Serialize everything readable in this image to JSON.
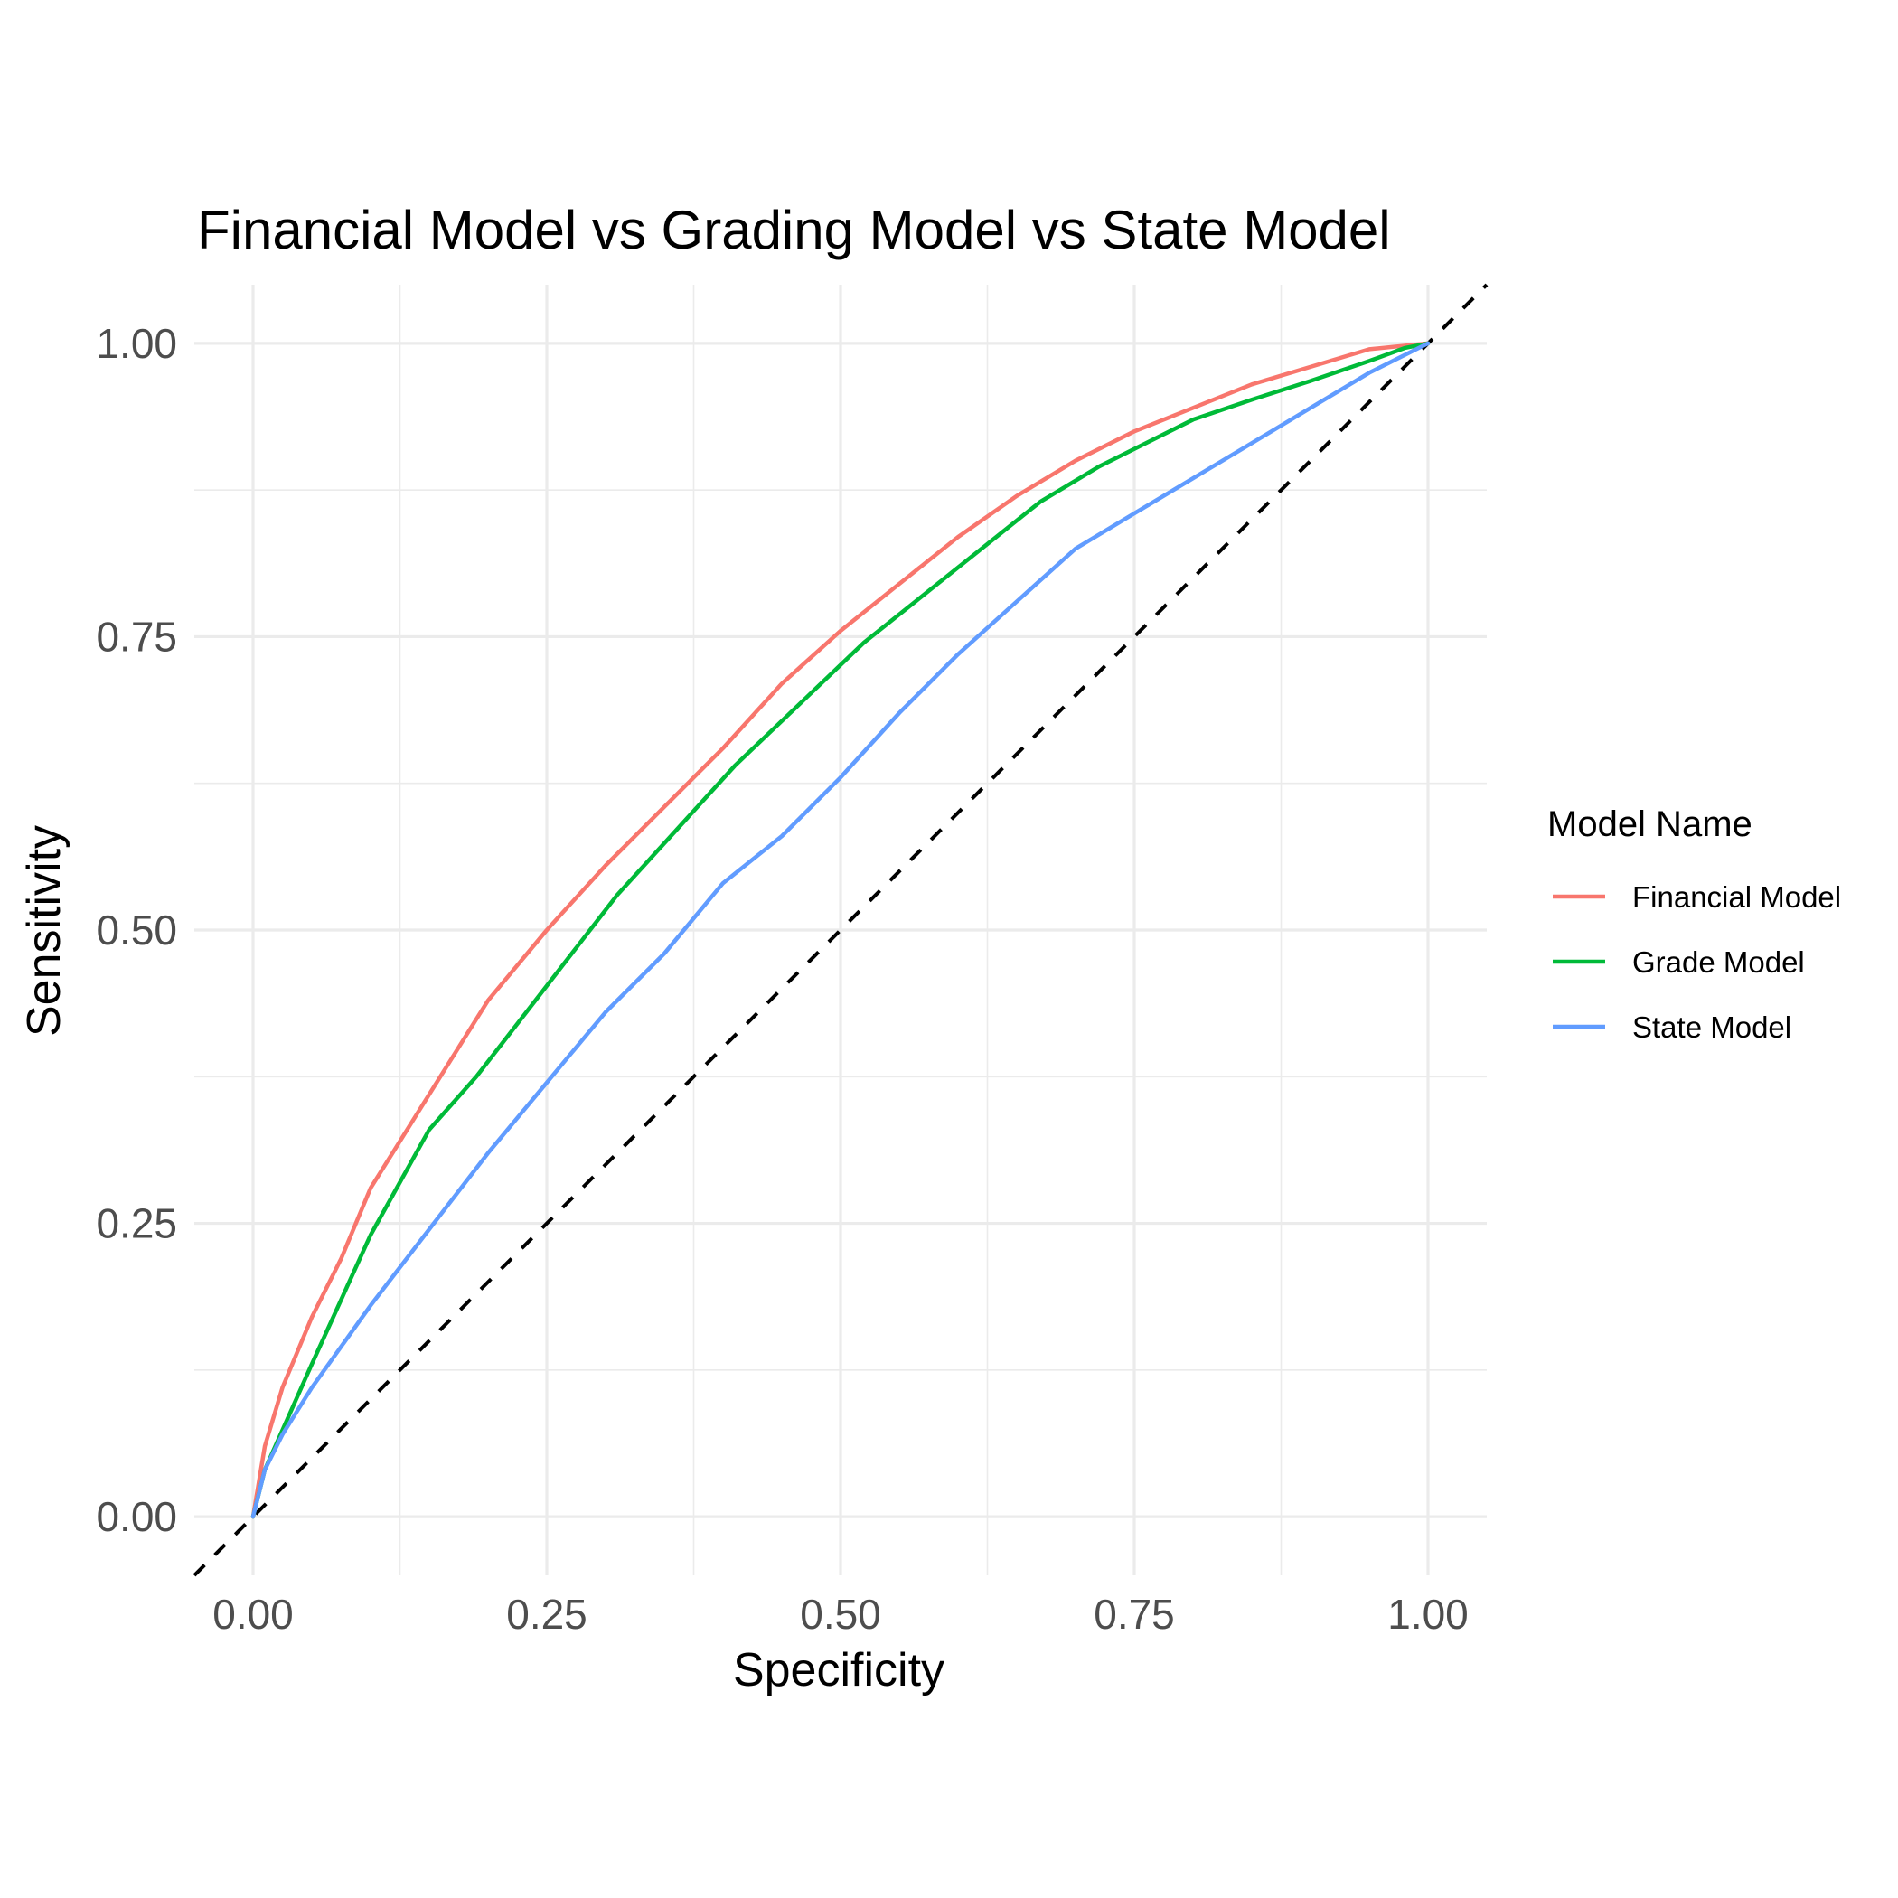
{
  "chart_data": {
    "type": "line",
    "title": "Financial Model vs Grading Model vs State Model",
    "xlabel": "Specificity",
    "ylabel": "Sensitivity",
    "xlim": [
      -0.05,
      1.05
    ],
    "ylim": [
      -0.05,
      1.05
    ],
    "x_ticks": [
      "0.00",
      "0.25",
      "0.50",
      "0.75",
      "1.00"
    ],
    "y_ticks": [
      "0.00",
      "0.25",
      "0.50",
      "0.75",
      "1.00"
    ],
    "grid": true,
    "legend": {
      "title": "Model Name",
      "placement": "right"
    },
    "reference_line": {
      "style": "dashed",
      "color": "#000000",
      "x": [
        -0.05,
        1.05
      ],
      "y": [
        -0.05,
        1.05
      ]
    },
    "series": [
      {
        "name": "Financial Model",
        "color": "#F8766D",
        "x": [
          0,
          0.01,
          0.025,
          0.05,
          0.075,
          0.1,
          0.125,
          0.15,
          0.175,
          0.2,
          0.225,
          0.25,
          0.3,
          0.35,
          0.4,
          0.45,
          0.5,
          0.55,
          0.6,
          0.65,
          0.7,
          0.75,
          0.8,
          0.85,
          0.9,
          0.95,
          1.0
        ],
        "y": [
          0,
          0.06,
          0.11,
          0.17,
          0.22,
          0.28,
          0.32,
          0.36,
          0.4,
          0.44,
          0.47,
          0.5,
          0.555,
          0.605,
          0.655,
          0.71,
          0.755,
          0.795,
          0.835,
          0.87,
          0.9,
          0.925,
          0.945,
          0.965,
          0.98,
          0.995,
          1.0
        ]
      },
      {
        "name": "Grade Model",
        "color": "#00BA38",
        "x": [
          0,
          0.01,
          0.05,
          0.1,
          0.15,
          0.19,
          0.31,
          0.41,
          0.52,
          0.62,
          0.67,
          0.72,
          0.8,
          0.85,
          0.9,
          0.95,
          0.98,
          1.0
        ],
        "y": [
          0,
          0.04,
          0.13,
          0.24,
          0.33,
          0.375,
          0.53,
          0.64,
          0.745,
          0.825,
          0.865,
          0.895,
          0.935,
          0.952,
          0.968,
          0.985,
          0.996,
          1.0
        ]
      },
      {
        "name": "State Model",
        "color": "#619CFF",
        "x": [
          0,
          0.01,
          0.025,
          0.05,
          0.1,
          0.15,
          0.2,
          0.25,
          0.3,
          0.35,
          0.4,
          0.45,
          0.5,
          0.55,
          0.6,
          0.65,
          0.7,
          0.75,
          0.8,
          0.85,
          0.9,
          0.95,
          1.0
        ],
        "y": [
          0,
          0.04,
          0.07,
          0.11,
          0.18,
          0.245,
          0.31,
          0.37,
          0.43,
          0.48,
          0.54,
          0.58,
          0.63,
          0.685,
          0.735,
          0.78,
          0.825,
          0.855,
          0.885,
          0.915,
          0.945,
          0.975,
          1.0
        ]
      }
    ]
  }
}
